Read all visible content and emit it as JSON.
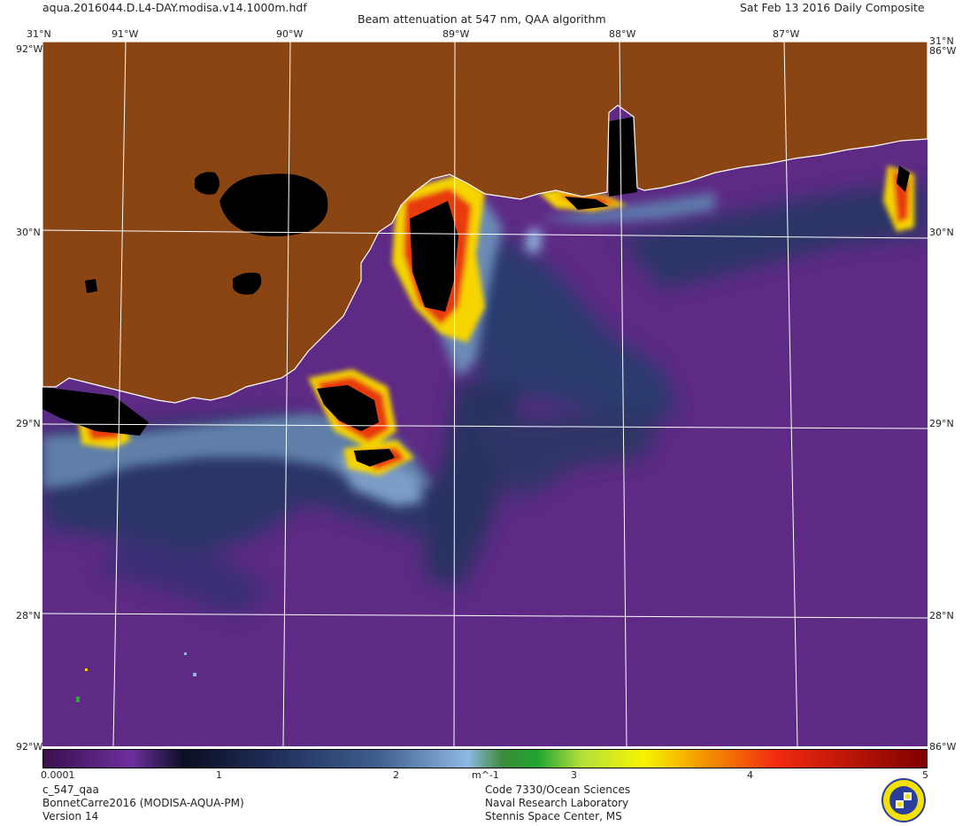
{
  "header": {
    "filename": "aqua.2016044.D.L4-DAY.modisa.v14.1000m.hdf",
    "title": "Beam attenuation at 547 nm, QAA algorithm",
    "date": "Sat Feb 13 2016 Daily Composite"
  },
  "map": {
    "lat_range": [
      27.2,
      31.0
    ],
    "lon_range": [
      -91.5,
      -86.4
    ],
    "top_lon_labels": [
      "91°W",
      "90°W",
      "89°W",
      "88°W",
      "87°W"
    ],
    "right_lat_labels": [
      "31°N",
      "30°N",
      "29°N",
      "28°N"
    ],
    "left_lat_labels": [
      "31°N",
      "30°N",
      "29°N",
      "28°N"
    ],
    "corner_labels": {
      "top_left": "31°N",
      "top_right": "31°N",
      "bottom_left": "28°N",
      "bottom_right": "28°N",
      "left_top_overlap": "92°W",
      "right_top_overlap": "86°W",
      "left_bottom_overlap": "92°W",
      "right_bottom_overlap": "86°W"
    },
    "colors": {
      "land": "#8b4513",
      "no_data": "#000000",
      "coast": "#ffffff",
      "grid": "#ffffff",
      "offshore_water": "#5f2a86"
    }
  },
  "colorbar": {
    "tick_labels": [
      "0.0001",
      "1",
      "2",
      "m^-1",
      "3",
      "4",
      "5"
    ]
  },
  "footer": {
    "left": [
      "c_547_qaa",
      "BonnetCarre2016 (MODISA-AQUA-PM)",
      "Version 14"
    ],
    "center": [
      "Code 7330/Ocean Sciences",
      "Naval Research Laboratory",
      "Stennis Space Center, MS"
    ],
    "logo": "nrl-seal-icon"
  }
}
